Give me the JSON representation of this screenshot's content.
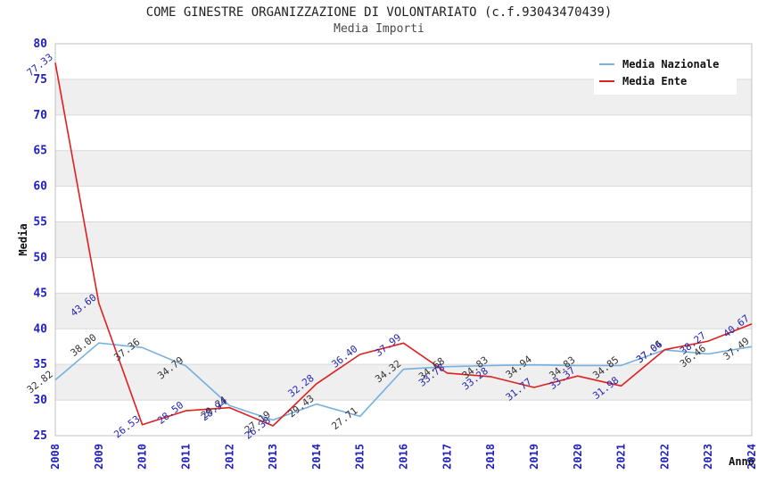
{
  "title": "COME GINESTRE ORGANIZZAZIONE DI VOLONTARIATO (c.f.93043470439)",
  "subtitle": "Media Importi",
  "axes": {
    "y_label": "Media",
    "x_label": "Anno",
    "y_min": 25,
    "y_max": 80,
    "y_step": 5,
    "y_ticks": [
      25,
      30,
      35,
      40,
      45,
      50,
      55,
      60,
      65,
      70,
      75,
      80
    ],
    "x_ticks": [
      "2008",
      "2009",
      "2010",
      "2011",
      "2012",
      "2013",
      "2014",
      "2015",
      "2016",
      "2017",
      "2018",
      "2019",
      "2020",
      "2021",
      "2022",
      "2023",
      "2024"
    ]
  },
  "chart_data": {
    "type": "line",
    "title": "COME GINESTRE ORGANIZZAZIONE DI VOLONTARIATO (c.f.93043470439) - Media Importi",
    "xlabel": "Anno",
    "ylabel": "Media",
    "ylim": [
      25,
      80
    ],
    "grid": "horizontal-gridlines-with-alternating-bands",
    "legend_position": "top-right",
    "categories": [
      2008,
      2009,
      2010,
      2011,
      2012,
      2013,
      2014,
      2015,
      2016,
      2017,
      2018,
      2019,
      2020,
      2021,
      2022,
      2023,
      2024
    ],
    "series": [
      {
        "name": "Media Nazionale",
        "color": "#76b0e0",
        "label_color": "#333333",
        "values": [
          32.82,
          38.0,
          37.36,
          34.79,
          29.24,
          27.19,
          29.43,
          27.71,
          34.32,
          34.68,
          34.83,
          34.94,
          34.83,
          34.85,
          37.04,
          36.46,
          37.49
        ]
      },
      {
        "name": "Media Ente",
        "color": "#dd2020",
        "label_color": "#2525b5",
        "values": [
          77.33,
          43.6,
          26.53,
          28.5,
          28.94,
          26.38,
          32.28,
          36.4,
          37.99,
          33.78,
          33.28,
          31.77,
          33.37,
          31.98,
          37.06,
          38.27,
          40.67
        ]
      }
    ]
  },
  "colors": {
    "tick_label": "#2222bb",
    "axis_label": "#111111",
    "gridline": "#d9d9d9",
    "plot_border": "#c0c0c0",
    "band_fill": "#efefef",
    "background": "#ffffff"
  }
}
